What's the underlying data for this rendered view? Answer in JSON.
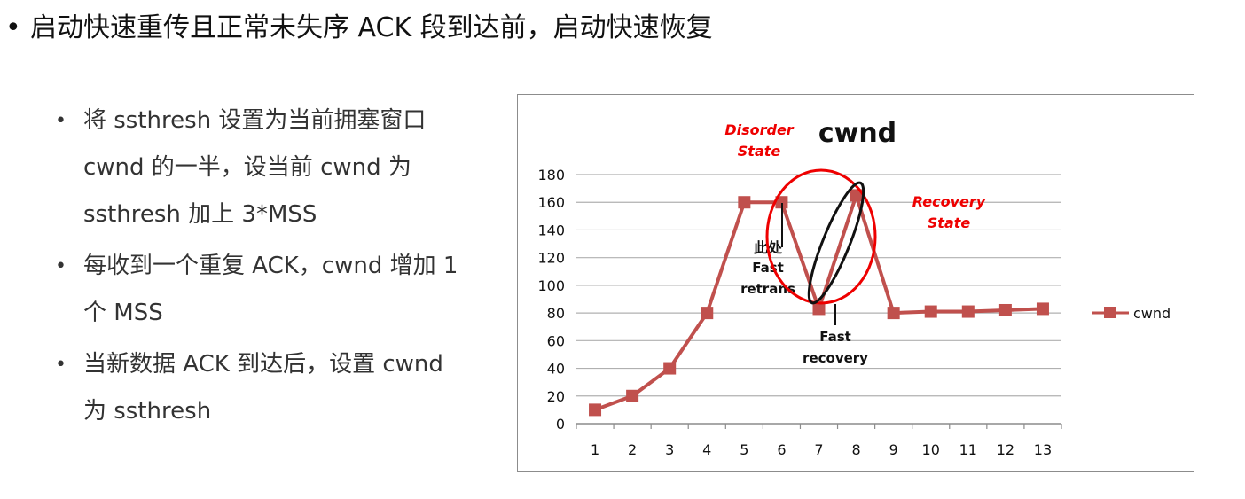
{
  "main_bullet": {
    "text": "启动快速重传且正常未失序 ACK 段到达前，启动快速恢复"
  },
  "sub_bullets": [
    {
      "lines": [
        "将 ssthresh 设置为当前拥塞窗口",
        "cwnd 的一半，设当前 cwnd 为",
        "ssthresh 加上 3*MSS"
      ]
    },
    {
      "lines": [
        "每收到一个重复 ACK，cwnd 增加 1",
        "个 MSS"
      ]
    },
    {
      "lines": [
        "当新数据 ACK 到达后，设置 cwnd",
        "为 ssthresh"
      ]
    }
  ],
  "colors": {
    "series": "#c0504d",
    "annotation_red": "#ee0000",
    "grid": "#b0b0b0"
  },
  "chart_data": {
    "type": "line",
    "title": "cwnd",
    "x": [
      1,
      2,
      3,
      4,
      5,
      6,
      7,
      8,
      9,
      10,
      11,
      12,
      13
    ],
    "series": [
      {
        "name": "cwnd",
        "values": [
          10,
          20,
          40,
          80,
          160,
          160,
          83,
          165,
          80,
          81,
          81,
          82,
          83
        ]
      }
    ],
    "ylim": [
      0,
      180
    ],
    "yticks": [
      0,
      20,
      40,
      60,
      80,
      100,
      120,
      140,
      160,
      180
    ],
    "grid": true,
    "legend": "right",
    "annotations": {
      "disorder_line1": "Disorder",
      "disorder_line2": "State",
      "recovery_line1": "Recovery",
      "recovery_line2": "State",
      "cichu": "此处",
      "fast1": "Fast",
      "retrans": "retrans",
      "fast2": "Fast",
      "recovery": "recovery"
    }
  }
}
